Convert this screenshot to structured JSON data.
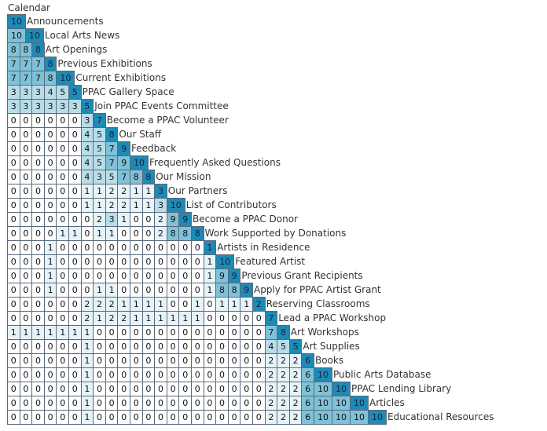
{
  "header": "Calendar",
  "colors": {
    "zero": "#ffffff",
    "low": "#e6f3f8",
    "mid": "#b8dde9",
    "high": "#7fc2d8",
    "top": "#1e8ab5",
    "border": "#5a6a7a"
  },
  "rows": [
    {
      "label": "Announcements",
      "values": [
        10
      ]
    },
    {
      "label": "Local Arts News",
      "values": [
        10,
        10
      ]
    },
    {
      "label": "Art Openings",
      "values": [
        8,
        8,
        8
      ]
    },
    {
      "label": "Previous Exhibitions",
      "values": [
        7,
        7,
        7,
        8
      ]
    },
    {
      "label": "Current Exhibitions",
      "values": [
        7,
        7,
        7,
        8,
        10
      ]
    },
    {
      "label": "PPAC Gallery Space",
      "values": [
        3,
        3,
        3,
        4,
        5,
        5
      ]
    },
    {
      "label": "Join PPAC Events Committee",
      "values": [
        3,
        3,
        3,
        3,
        3,
        3,
        5
      ]
    },
    {
      "label": "Become a PPAC Volunteer",
      "values": [
        0,
        0,
        0,
        0,
        0,
        0,
        3,
        7
      ]
    },
    {
      "label": "Our Staff",
      "values": [
        0,
        0,
        0,
        0,
        0,
        0,
        4,
        5,
        8
      ]
    },
    {
      "label": "Feedback",
      "values": [
        0,
        0,
        0,
        0,
        0,
        0,
        4,
        5,
        7,
        9
      ]
    },
    {
      "label": "Frequently Asked Questions",
      "values": [
        0,
        0,
        0,
        0,
        0,
        0,
        4,
        5,
        7,
        9,
        10
      ]
    },
    {
      "label": "Our Mission",
      "values": [
        0,
        0,
        0,
        0,
        0,
        0,
        4,
        3,
        5,
        7,
        8,
        8
      ]
    },
    {
      "label": "Our Partners",
      "values": [
        0,
        0,
        0,
        0,
        0,
        0,
        1,
        1,
        2,
        2,
        1,
        1,
        3
      ]
    },
    {
      "label": "List of Contributors",
      "values": [
        0,
        0,
        0,
        0,
        0,
        0,
        1,
        1,
        2,
        2,
        1,
        1,
        3,
        10
      ]
    },
    {
      "label": "Become a PPAC Donor",
      "values": [
        0,
        0,
        0,
        0,
        0,
        0,
        0,
        2,
        3,
        1,
        0,
        0,
        2,
        9,
        9
      ]
    },
    {
      "label": "Work Supported by Donations",
      "values": [
        0,
        0,
        0,
        0,
        1,
        1,
        0,
        1,
        1,
        0,
        0,
        0,
        2,
        8,
        8,
        8
      ]
    },
    {
      "label": "Artists in Residence",
      "values": [
        0,
        0,
        0,
        1,
        0,
        0,
        0,
        0,
        0,
        0,
        0,
        0,
        0,
        0,
        0,
        0,
        1
      ]
    },
    {
      "label": "Featured Artist",
      "values": [
        0,
        0,
        0,
        1,
        0,
        0,
        0,
        0,
        0,
        0,
        0,
        0,
        0,
        0,
        0,
        0,
        1,
        10
      ]
    },
    {
      "label": "Previous Grant Recipients",
      "values": [
        0,
        0,
        0,
        1,
        0,
        0,
        0,
        0,
        0,
        0,
        0,
        0,
        0,
        0,
        0,
        0,
        1,
        9,
        9
      ]
    },
    {
      "label": "Apply for PPAC Artist Grant",
      "values": [
        0,
        0,
        0,
        1,
        0,
        0,
        0,
        1,
        1,
        0,
        0,
        0,
        0,
        0,
        0,
        0,
        1,
        8,
        8,
        9
      ]
    },
    {
      "label": "Reserving Classrooms",
      "values": [
        0,
        0,
        0,
        0,
        0,
        0,
        2,
        2,
        2,
        1,
        1,
        1,
        1,
        0,
        0,
        1,
        0,
        1,
        1,
        1,
        2
      ]
    },
    {
      "label": "Lead a PPAC Workshop",
      "values": [
        0,
        0,
        0,
        0,
        0,
        0,
        2,
        1,
        2,
        2,
        1,
        1,
        1,
        1,
        1,
        1,
        0,
        0,
        0,
        0,
        0,
        7
      ]
    },
    {
      "label": "Art Workshops",
      "values": [
        1,
        1,
        1,
        1,
        1,
        1,
        1,
        0,
        0,
        0,
        0,
        0,
        0,
        0,
        0,
        0,
        0,
        0,
        0,
        0,
        0,
        7,
        8
      ]
    },
    {
      "label": "Art Supplies",
      "values": [
        0,
        0,
        0,
        0,
        0,
        0,
        1,
        0,
        0,
        0,
        0,
        0,
        0,
        0,
        0,
        0,
        0,
        0,
        0,
        0,
        0,
        4,
        5,
        5
      ]
    },
    {
      "label": "Books",
      "values": [
        0,
        0,
        0,
        0,
        0,
        0,
        1,
        0,
        0,
        0,
        0,
        0,
        0,
        0,
        0,
        0,
        0,
        0,
        0,
        0,
        0,
        2,
        2,
        2,
        6
      ]
    },
    {
      "label": "Public Arts Database",
      "values": [
        0,
        0,
        0,
        0,
        0,
        0,
        1,
        0,
        0,
        0,
        0,
        0,
        0,
        0,
        0,
        0,
        0,
        0,
        0,
        0,
        0,
        2,
        2,
        2,
        6,
        10
      ]
    },
    {
      "label": "PPAC Lending Library",
      "values": [
        0,
        0,
        0,
        0,
        0,
        0,
        1,
        0,
        0,
        0,
        0,
        0,
        0,
        0,
        0,
        0,
        0,
        0,
        0,
        0,
        0,
        2,
        2,
        2,
        6,
        10,
        10
      ]
    },
    {
      "label": "Articles",
      "values": [
        0,
        0,
        0,
        0,
        0,
        0,
        1,
        0,
        0,
        0,
        0,
        0,
        0,
        0,
        0,
        0,
        0,
        0,
        0,
        0,
        0,
        2,
        2,
        2,
        6,
        10,
        10,
        10
      ]
    },
    {
      "label": "Educational Resources",
      "values": [
        0,
        0,
        0,
        0,
        0,
        0,
        1,
        0,
        0,
        0,
        0,
        0,
        0,
        0,
        0,
        0,
        0,
        0,
        0,
        0,
        0,
        2,
        2,
        2,
        6,
        10,
        10,
        10,
        10
      ]
    }
  ]
}
